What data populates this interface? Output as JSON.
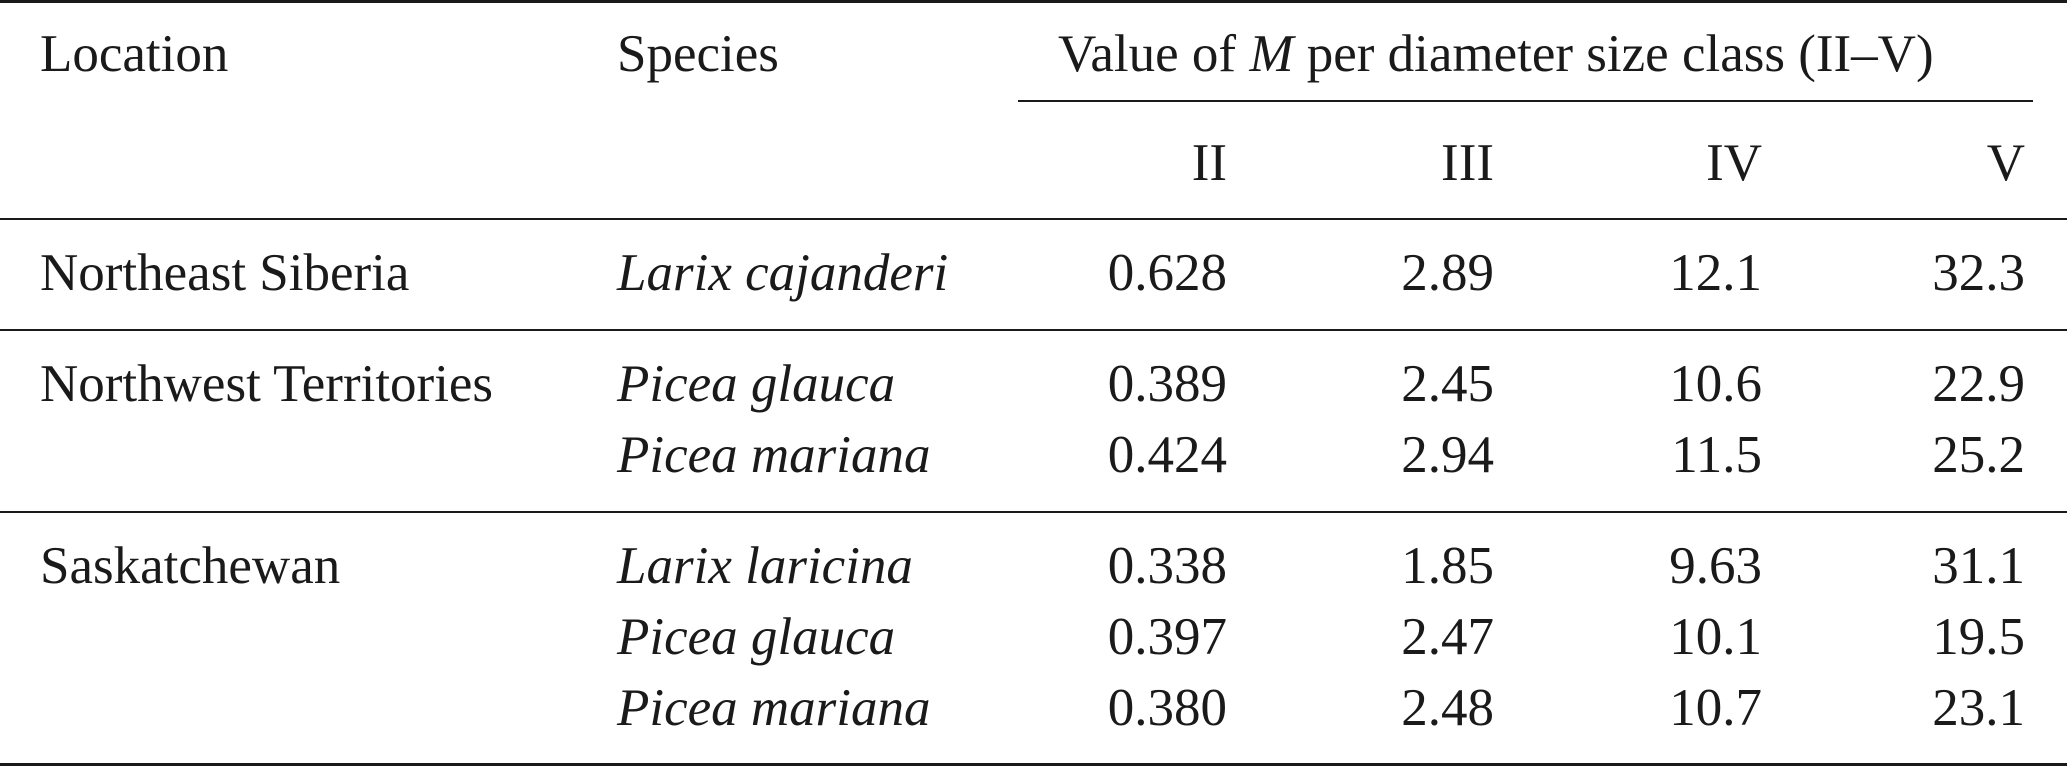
{
  "header": {
    "location": "Location",
    "species": "Species",
    "value_prefix": "Value of ",
    "value_symbol": "M",
    "value_suffix": " per diameter size class (II–V)",
    "classes": [
      "II",
      "III",
      "IV",
      "V"
    ]
  },
  "groups": [
    {
      "location": "Northeast Siberia",
      "rows": [
        {
          "species": "Larix cajanderi",
          "values": [
            "0.628",
            "2.89",
            "12.1",
            "32.3"
          ]
        }
      ]
    },
    {
      "location": "Northwest Territories",
      "rows": [
        {
          "species": "Picea glauca",
          "values": [
            "0.389",
            "2.45",
            "10.6",
            "22.9"
          ]
        },
        {
          "species": "Picea mariana",
          "values": [
            "0.424",
            "2.94",
            "11.5",
            "25.2"
          ]
        }
      ]
    },
    {
      "location": "Saskatchewan",
      "rows": [
        {
          "species": "Larix laricina",
          "values": [
            "0.338",
            "1.85",
            "9.63",
            "31.1"
          ]
        },
        {
          "species": "Picea glauca",
          "values": [
            "0.397",
            "2.47",
            "10.1",
            "19.5"
          ]
        },
        {
          "species": "Picea mariana",
          "values": [
            "0.380",
            "2.48",
            "10.7",
            "23.1"
          ]
        }
      ]
    }
  ]
}
